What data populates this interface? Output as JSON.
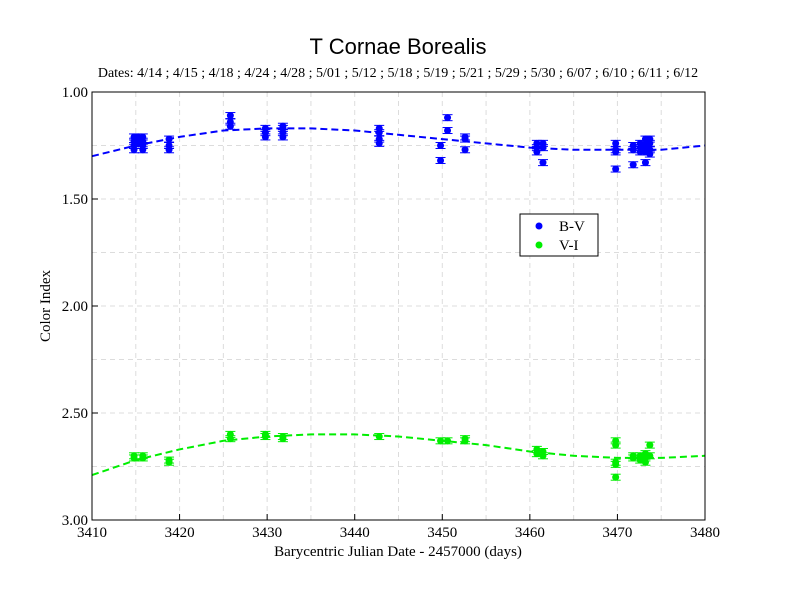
{
  "chart_data": {
    "type": "scatter",
    "title": "T Cornae Borealis",
    "subtitle": "Dates:  4/14 ; 4/15 ; 4/18 ; 4/24 ; 4/28 ; 5/01 ; 5/12 ; 5/18 ; 5/19 ; 5/21 ; 5/29 ; 5/30 ; 6/07 ; 6/10 ; 6/11 ; 6/12",
    "xlabel": "Barycentric Julian Date - 2457000 (days)",
    "ylabel": "Color Index",
    "xlim": [
      3410,
      3480
    ],
    "ylim": [
      1.0,
      3.0
    ],
    "y_inverted": true,
    "grid": true,
    "legend_position": "right-middle",
    "x_ticks": [
      3410,
      3420,
      3430,
      3440,
      3450,
      3460,
      3470,
      3480
    ],
    "x_tick_labels": [
      "3410",
      "3420",
      "3430",
      "3440",
      "3450",
      "3460",
      "3470",
      "3480"
    ],
    "y_ticks": [
      1.0,
      1.5,
      2.0,
      2.5,
      3.0
    ],
    "y_tick_labels": [
      "1.00",
      "1.50",
      "2.00",
      "2.50",
      "3.00"
    ],
    "series": [
      {
        "name": "B-V",
        "color": "#0000ff",
        "points": [
          {
            "x": 3414.8,
            "y": 1.21
          },
          {
            "x": 3414.8,
            "y": 1.23
          },
          {
            "x": 3414.8,
            "y": 1.25
          },
          {
            "x": 3414.8,
            "y": 1.27
          },
          {
            "x": 3415.2,
            "y": 1.22
          },
          {
            "x": 3415.2,
            "y": 1.24
          },
          {
            "x": 3415.2,
            "y": 1.21
          },
          {
            "x": 3415.8,
            "y": 1.21
          },
          {
            "x": 3415.8,
            "y": 1.23
          },
          {
            "x": 3415.8,
            "y": 1.25
          },
          {
            "x": 3415.8,
            "y": 1.27
          },
          {
            "x": 3418.8,
            "y": 1.22
          },
          {
            "x": 3418.8,
            "y": 1.25
          },
          {
            "x": 3418.8,
            "y": 1.27
          },
          {
            "x": 3425.8,
            "y": 1.11
          },
          {
            "x": 3425.8,
            "y": 1.14
          },
          {
            "x": 3425.8,
            "y": 1.16
          },
          {
            "x": 3429.8,
            "y": 1.17
          },
          {
            "x": 3429.8,
            "y": 1.19
          },
          {
            "x": 3429.8,
            "y": 1.21
          },
          {
            "x": 3431.8,
            "y": 1.16
          },
          {
            "x": 3431.8,
            "y": 1.17
          },
          {
            "x": 3431.8,
            "y": 1.19
          },
          {
            "x": 3431.8,
            "y": 1.21
          },
          {
            "x": 3442.8,
            "y": 1.17
          },
          {
            "x": 3442.8,
            "y": 1.19
          },
          {
            "x": 3442.8,
            "y": 1.22
          },
          {
            "x": 3442.8,
            "y": 1.24
          },
          {
            "x": 3449.8,
            "y": 1.25
          },
          {
            "x": 3449.8,
            "y": 1.32
          },
          {
            "x": 3450.6,
            "y": 1.12
          },
          {
            "x": 3450.6,
            "y": 1.18
          },
          {
            "x": 3452.6,
            "y": 1.21
          },
          {
            "x": 3452.6,
            "y": 1.22
          },
          {
            "x": 3452.6,
            "y": 1.27
          },
          {
            "x": 3460.8,
            "y": 1.24
          },
          {
            "x": 3460.8,
            "y": 1.26
          },
          {
            "x": 3460.8,
            "y": 1.28
          },
          {
            "x": 3461.5,
            "y": 1.24
          },
          {
            "x": 3461.5,
            "y": 1.26
          },
          {
            "x": 3461.5,
            "y": 1.33
          },
          {
            "x": 3469.8,
            "y": 1.24
          },
          {
            "x": 3469.8,
            "y": 1.27
          },
          {
            "x": 3469.8,
            "y": 1.28
          },
          {
            "x": 3469.8,
            "y": 1.36
          },
          {
            "x": 3471.8,
            "y": 1.25
          },
          {
            "x": 3471.8,
            "y": 1.27
          },
          {
            "x": 3471.8,
            "y": 1.34
          },
          {
            "x": 3472.6,
            "y": 1.24
          },
          {
            "x": 3472.6,
            "y": 1.26
          },
          {
            "x": 3472.6,
            "y": 1.28
          },
          {
            "x": 3473.2,
            "y": 1.22
          },
          {
            "x": 3473.2,
            "y": 1.25
          },
          {
            "x": 3473.2,
            "y": 1.28
          },
          {
            "x": 3473.2,
            "y": 1.33
          },
          {
            "x": 3473.7,
            "y": 1.22
          },
          {
            "x": 3473.7,
            "y": 1.24
          },
          {
            "x": 3473.7,
            "y": 1.27
          },
          {
            "x": 3473.7,
            "y": 1.29
          }
        ],
        "fit": {
          "x": [
            3410,
            3415,
            3420,
            3425,
            3430,
            3435,
            3440,
            3445,
            3450,
            3455,
            3460,
            3465,
            3470,
            3475,
            3480
          ],
          "y": [
            1.3,
            1.25,
            1.21,
            1.18,
            1.17,
            1.17,
            1.18,
            1.2,
            1.22,
            1.24,
            1.26,
            1.27,
            1.27,
            1.27,
            1.25
          ]
        }
      },
      {
        "name": "V-I",
        "color": "#00ee00",
        "points": [
          {
            "x": 3414.8,
            "y": 2.7
          },
          {
            "x": 3414.8,
            "y": 2.71
          },
          {
            "x": 3415.8,
            "y": 2.7
          },
          {
            "x": 3415.8,
            "y": 2.71
          },
          {
            "x": 3418.8,
            "y": 2.72
          },
          {
            "x": 3418.8,
            "y": 2.73
          },
          {
            "x": 3425.8,
            "y": 2.6
          },
          {
            "x": 3425.8,
            "y": 2.62
          },
          {
            "x": 3429.8,
            "y": 2.6
          },
          {
            "x": 3429.8,
            "y": 2.61
          },
          {
            "x": 3431.8,
            "y": 2.61
          },
          {
            "x": 3431.8,
            "y": 2.62
          },
          {
            "x": 3442.8,
            "y": 2.61
          },
          {
            "x": 3449.8,
            "y": 2.63
          },
          {
            "x": 3450.6,
            "y": 2.63
          },
          {
            "x": 3452.6,
            "y": 2.62
          },
          {
            "x": 3452.6,
            "y": 2.63
          },
          {
            "x": 3460.8,
            "y": 2.67
          },
          {
            "x": 3460.8,
            "y": 2.69
          },
          {
            "x": 3461.5,
            "y": 2.68
          },
          {
            "x": 3461.5,
            "y": 2.7
          },
          {
            "x": 3469.8,
            "y": 2.63
          },
          {
            "x": 3469.8,
            "y": 2.65
          },
          {
            "x": 3469.8,
            "y": 2.73
          },
          {
            "x": 3469.8,
            "y": 2.74
          },
          {
            "x": 3469.8,
            "y": 2.8
          },
          {
            "x": 3471.8,
            "y": 2.7
          },
          {
            "x": 3471.8,
            "y": 2.71
          },
          {
            "x": 3472.6,
            "y": 2.7
          },
          {
            "x": 3472.6,
            "y": 2.72
          },
          {
            "x": 3473.2,
            "y": 2.69
          },
          {
            "x": 3473.2,
            "y": 2.71
          },
          {
            "x": 3473.2,
            "y": 2.73
          },
          {
            "x": 3473.7,
            "y": 2.65
          },
          {
            "x": 3473.7,
            "y": 2.7
          }
        ],
        "fit": {
          "x": [
            3410,
            3415,
            3420,
            3425,
            3430,
            3435,
            3440,
            3445,
            3450,
            3455,
            3460,
            3465,
            3470,
            3475,
            3480
          ],
          "y": [
            2.79,
            2.72,
            2.67,
            2.63,
            2.61,
            2.6,
            2.6,
            2.61,
            2.63,
            2.65,
            2.68,
            2.7,
            2.71,
            2.71,
            2.7
          ]
        }
      }
    ]
  }
}
